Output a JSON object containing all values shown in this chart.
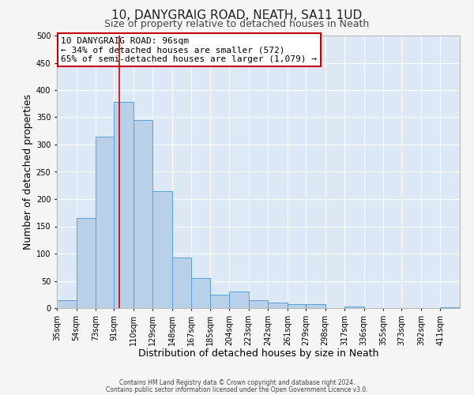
{
  "title": "10, DANYGRAIG ROAD, NEATH, SA11 1UD",
  "subtitle": "Size of property relative to detached houses in Neath",
  "xlabel": "Distribution of detached houses by size in Neath",
  "ylabel": "Number of detached properties",
  "bar_labels": [
    "35sqm",
    "54sqm",
    "73sqm",
    "91sqm",
    "110sqm",
    "129sqm",
    "148sqm",
    "167sqm",
    "185sqm",
    "204sqm",
    "223sqm",
    "242sqm",
    "261sqm",
    "279sqm",
    "298sqm",
    "317sqm",
    "336sqm",
    "355sqm",
    "373sqm",
    "392sqm",
    "411sqm"
  ],
  "bar_heights": [
    15,
    165,
    315,
    378,
    345,
    215,
    93,
    55,
    25,
    30,
    15,
    10,
    7,
    7,
    0,
    3,
    0,
    0,
    0,
    0,
    2
  ],
  "bin_edges": [
    35,
    54,
    73,
    91,
    110,
    129,
    148,
    167,
    185,
    204,
    223,
    242,
    261,
    279,
    298,
    317,
    336,
    355,
    373,
    392,
    411,
    430
  ],
  "bar_color": "#b8d0e8",
  "bar_edge_color": "#5a9fd4",
  "vline_x": 96,
  "vline_color": "#cc0000",
  "ylim": [
    0,
    500
  ],
  "yticks": [
    0,
    50,
    100,
    150,
    200,
    250,
    300,
    350,
    400,
    450,
    500
  ],
  "annotation_title": "10 DANYGRAIG ROAD: 96sqm",
  "annotation_line1": "← 34% of detached houses are smaller (572)",
  "annotation_line2": "65% of semi-detached houses are larger (1,079) →",
  "annotation_box_color": "#ffffff",
  "annotation_box_edge": "#cc0000",
  "footer1": "Contains HM Land Registry data © Crown copyright and database right 2024.",
  "footer2": "Contains public sector information licensed under the Open Government Licence v3.0.",
  "background_color": "#dce8f5",
  "grid_color": "#ffffff",
  "title_fontsize": 11,
  "subtitle_fontsize": 9,
  "axis_label_fontsize": 9,
  "tick_fontsize": 7,
  "annot_fontsize": 8
}
